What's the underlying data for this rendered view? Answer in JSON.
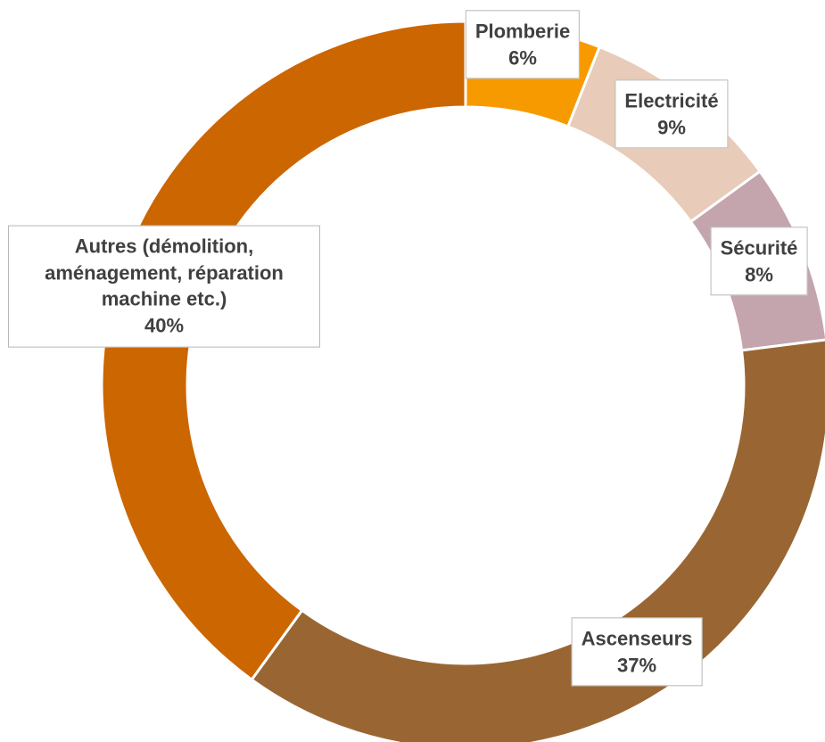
{
  "chart_data": {
    "type": "donut",
    "categories": [
      "Plomberie",
      "Electricité",
      "Sécurité",
      "Ascenseurs",
      "Autres (démolition, aménagement, réparation machine etc.)"
    ],
    "values": [
      6,
      9,
      8,
      37,
      40
    ],
    "value_labels": [
      "6%",
      "9%",
      "8%",
      "37%",
      "40%"
    ],
    "colors": [
      "#f79a00",
      "#e8cbb8",
      "#c4a4ad",
      "#996633",
      "#cc6600"
    ]
  }
}
